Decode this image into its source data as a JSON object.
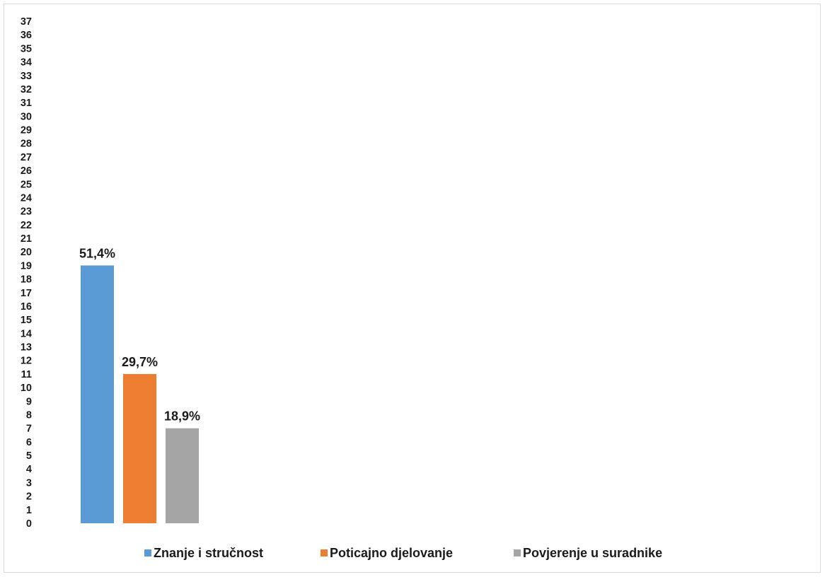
{
  "chart_data": {
    "type": "bar",
    "title": "",
    "xlabel": "",
    "ylabel": "",
    "ylim": [
      0,
      37
    ],
    "yticks": [
      0,
      1,
      2,
      3,
      4,
      5,
      6,
      7,
      8,
      9,
      10,
      11,
      12,
      13,
      14,
      15,
      16,
      17,
      18,
      19,
      20,
      21,
      22,
      23,
      24,
      25,
      26,
      27,
      28,
      29,
      30,
      31,
      32,
      33,
      34,
      35,
      36,
      37
    ],
    "grid": false,
    "legend_position": "bottom",
    "series": [
      {
        "name": "Znanje i stručnost",
        "value": 19,
        "label": "51,4%",
        "color": "#5b9bd5"
      },
      {
        "name": "Poticajno djelovanje",
        "value": 11,
        "label": "29,7%",
        "color": "#ed7d31"
      },
      {
        "name": "Povjerenje u suradnike",
        "value": 7,
        "label": "18,9%",
        "color": "#a5a5a5"
      }
    ]
  }
}
